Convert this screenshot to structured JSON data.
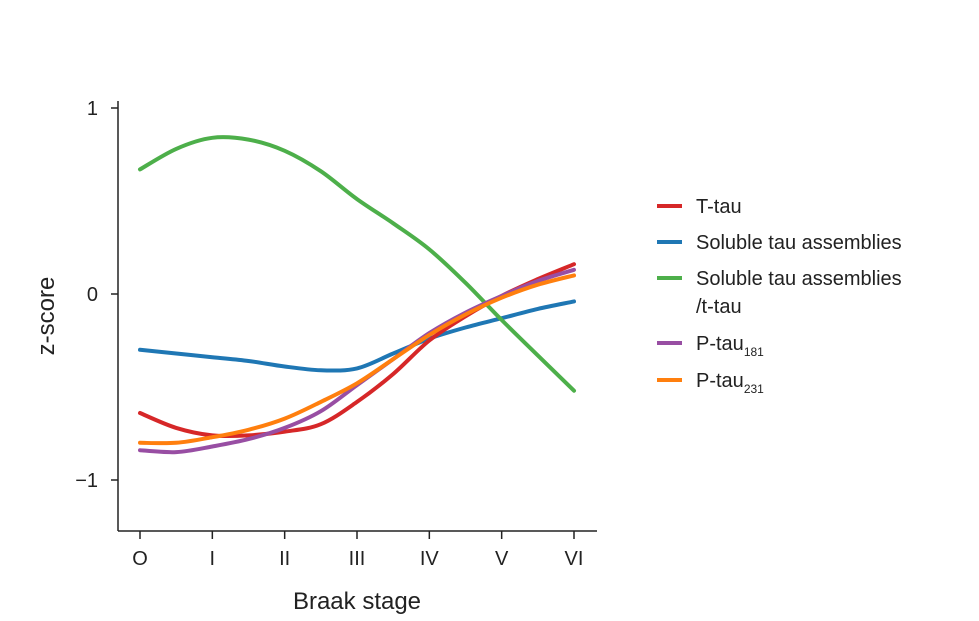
{
  "chart_data": {
    "type": "line",
    "title": "",
    "xlabel": "Braak stage",
    "ylabel": "z-score",
    "categories": [
      "O",
      "I",
      "II",
      "III",
      "IV",
      "V",
      "VI"
    ],
    "y_ticks": [
      {
        "value": 1,
        "label": "1"
      },
      {
        "value": 0,
        "label": "0"
      },
      {
        "value": -1,
        "label": "−1"
      }
    ],
    "ylim": [
      -1.27,
      1.05
    ],
    "grid": false,
    "legend_position": "right",
    "series": [
      {
        "name": "T-tau",
        "color": "#d62728",
        "x": [
          0,
          0.5,
          1,
          1.5,
          2,
          2.5,
          3,
          3.5,
          4,
          4.5,
          5,
          5.5,
          6
        ],
        "values": [
          -0.64,
          -0.72,
          -0.76,
          -0.76,
          -0.74,
          -0.7,
          -0.58,
          -0.43,
          -0.25,
          -0.12,
          -0.01,
          0.08,
          0.16
        ]
      },
      {
        "name": "Soluble tau assemblies",
        "color": "#1f77b4",
        "x": [
          0,
          0.5,
          1,
          1.5,
          2,
          2.5,
          3,
          3.5,
          4,
          4.5,
          5,
          5.5,
          6
        ],
        "values": [
          -0.3,
          -0.32,
          -0.34,
          -0.36,
          -0.39,
          -0.41,
          -0.4,
          -0.32,
          -0.24,
          -0.18,
          -0.13,
          -0.08,
          -0.04
        ]
      },
      {
        "name": "Soluble tau assemblies",
        "name_line2": "/t-tau",
        "color": "#4daf4a",
        "x": [
          0,
          0.5,
          1,
          1.5,
          2,
          2.5,
          3,
          3.5,
          4,
          4.5,
          5,
          5.5,
          6
        ],
        "values": [
          0.67,
          0.78,
          0.84,
          0.83,
          0.77,
          0.66,
          0.51,
          0.38,
          0.24,
          0.06,
          -0.14,
          -0.33,
          -0.52
        ]
      },
      {
        "name": "P-tau",
        "sub": "181",
        "color": "#984ea3",
        "x": [
          0,
          0.5,
          1,
          1.5,
          2,
          2.5,
          3,
          3.5,
          4,
          4.5,
          5,
          5.5,
          6
        ],
        "values": [
          -0.84,
          -0.85,
          -0.82,
          -0.78,
          -0.72,
          -0.63,
          -0.49,
          -0.35,
          -0.21,
          -0.1,
          -0.01,
          0.07,
          0.13
        ]
      },
      {
        "name": "P-tau",
        "sub": "231",
        "color": "#ff7f0e",
        "x": [
          0,
          0.5,
          1,
          1.5,
          2,
          2.5,
          3,
          3.5,
          4,
          4.5,
          5,
          5.5,
          6
        ],
        "values": [
          -0.8,
          -0.8,
          -0.77,
          -0.73,
          -0.67,
          -0.58,
          -0.48,
          -0.35,
          -0.22,
          -0.11,
          -0.02,
          0.05,
          0.1
        ]
      }
    ]
  }
}
